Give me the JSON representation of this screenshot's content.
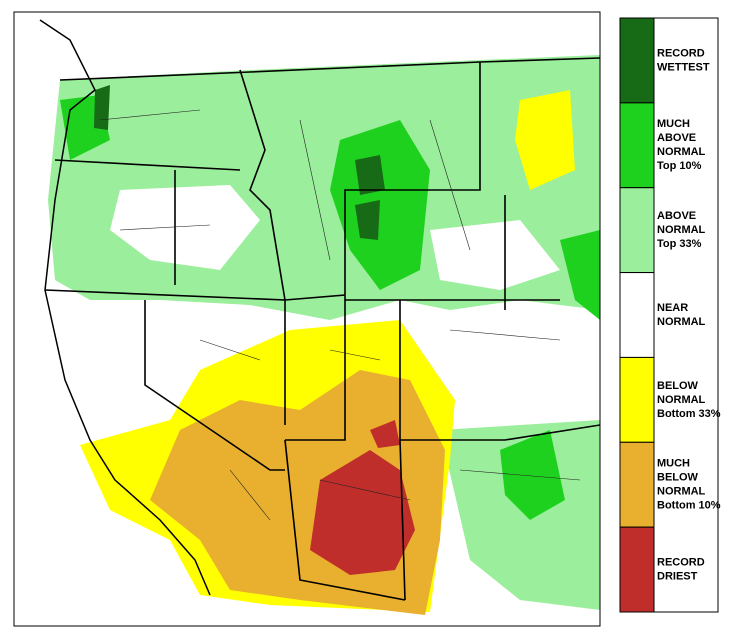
{
  "legend": {
    "items": [
      {
        "lines": [
          "RECORD",
          "WETTEST"
        ],
        "color": "#176b17"
      },
      {
        "lines": [
          "MUCH",
          "ABOVE",
          "NORMAL",
          "Top 10%"
        ],
        "color": "#1fd11f"
      },
      {
        "lines": [
          "ABOVE",
          "NORMAL",
          "Top 33%"
        ],
        "color": "#9bee9b"
      },
      {
        "lines": [
          "NEAR",
          "NORMAL"
        ],
        "color": "#ffffff"
      },
      {
        "lines": [
          "BELOW",
          "NORMAL",
          "Bottom 33%"
        ],
        "color": "#ffff00"
      },
      {
        "lines": [
          "MUCH",
          "BELOW",
          "NORMAL",
          "Bottom 10%"
        ],
        "color": "#e8b02e"
      },
      {
        "lines": [
          "RECORD",
          "DRIEST"
        ],
        "color": "#bf2e2a"
      }
    ]
  }
}
